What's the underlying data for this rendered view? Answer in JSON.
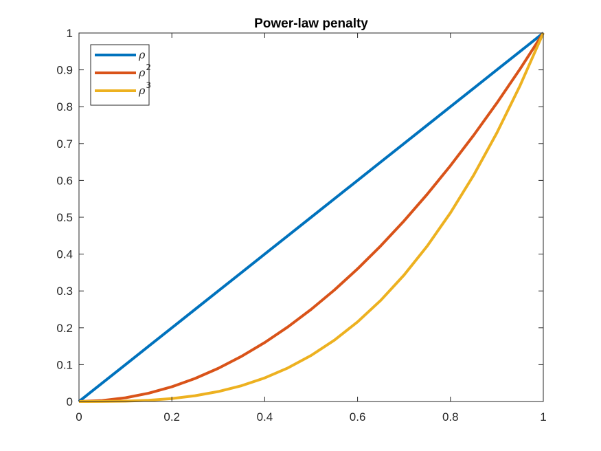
{
  "chart_data": {
    "type": "line",
    "title": "Power-law penalty",
    "xlabel": "",
    "ylabel": "",
    "xlim": [
      0,
      1
    ],
    "ylim": [
      0,
      1
    ],
    "xticks": [
      "0",
      "0.2",
      "0.4",
      "0.6",
      "0.8",
      "1"
    ],
    "yticks": [
      "0",
      "0.1",
      "0.2",
      "0.3",
      "0.4",
      "0.5",
      "0.6",
      "0.7",
      "0.8",
      "0.9",
      "1"
    ],
    "grid": false,
    "legend_position": "top-left",
    "x": [
      0,
      0.05,
      0.1,
      0.15,
      0.2,
      0.25,
      0.3,
      0.35,
      0.4,
      0.45,
      0.5,
      0.55,
      0.6,
      0.65,
      0.7,
      0.75,
      0.8,
      0.85,
      0.9,
      0.95,
      1
    ],
    "series": [
      {
        "name": "ρ",
        "base": "ρ",
        "sup": "",
        "color": "#0072BD",
        "values": [
          0,
          0.05,
          0.1,
          0.15,
          0.2,
          0.25,
          0.3,
          0.35,
          0.4,
          0.45,
          0.5,
          0.55,
          0.6,
          0.65,
          0.7,
          0.75,
          0.8,
          0.85,
          0.9,
          0.95,
          1
        ]
      },
      {
        "name": "ρ2",
        "base": "ρ",
        "sup": "2",
        "color": "#D95319",
        "values": [
          0,
          0.0025,
          0.01,
          0.0225,
          0.04,
          0.0625,
          0.09,
          0.1225,
          0.16,
          0.2025,
          0.25,
          0.3025,
          0.36,
          0.4225,
          0.49,
          0.5625,
          0.64,
          0.7225,
          0.81,
          0.9025,
          1
        ]
      },
      {
        "name": "ρ3",
        "base": "ρ",
        "sup": "3",
        "color": "#EDB120",
        "values": [
          0,
          0.000125,
          0.001,
          0.003375,
          0.008,
          0.015625,
          0.027,
          0.042875,
          0.064,
          0.091125,
          0.125,
          0.166375,
          0.216,
          0.274625,
          0.343,
          0.421875,
          0.512,
          0.614125,
          0.729,
          0.857375,
          1
        ]
      }
    ]
  }
}
